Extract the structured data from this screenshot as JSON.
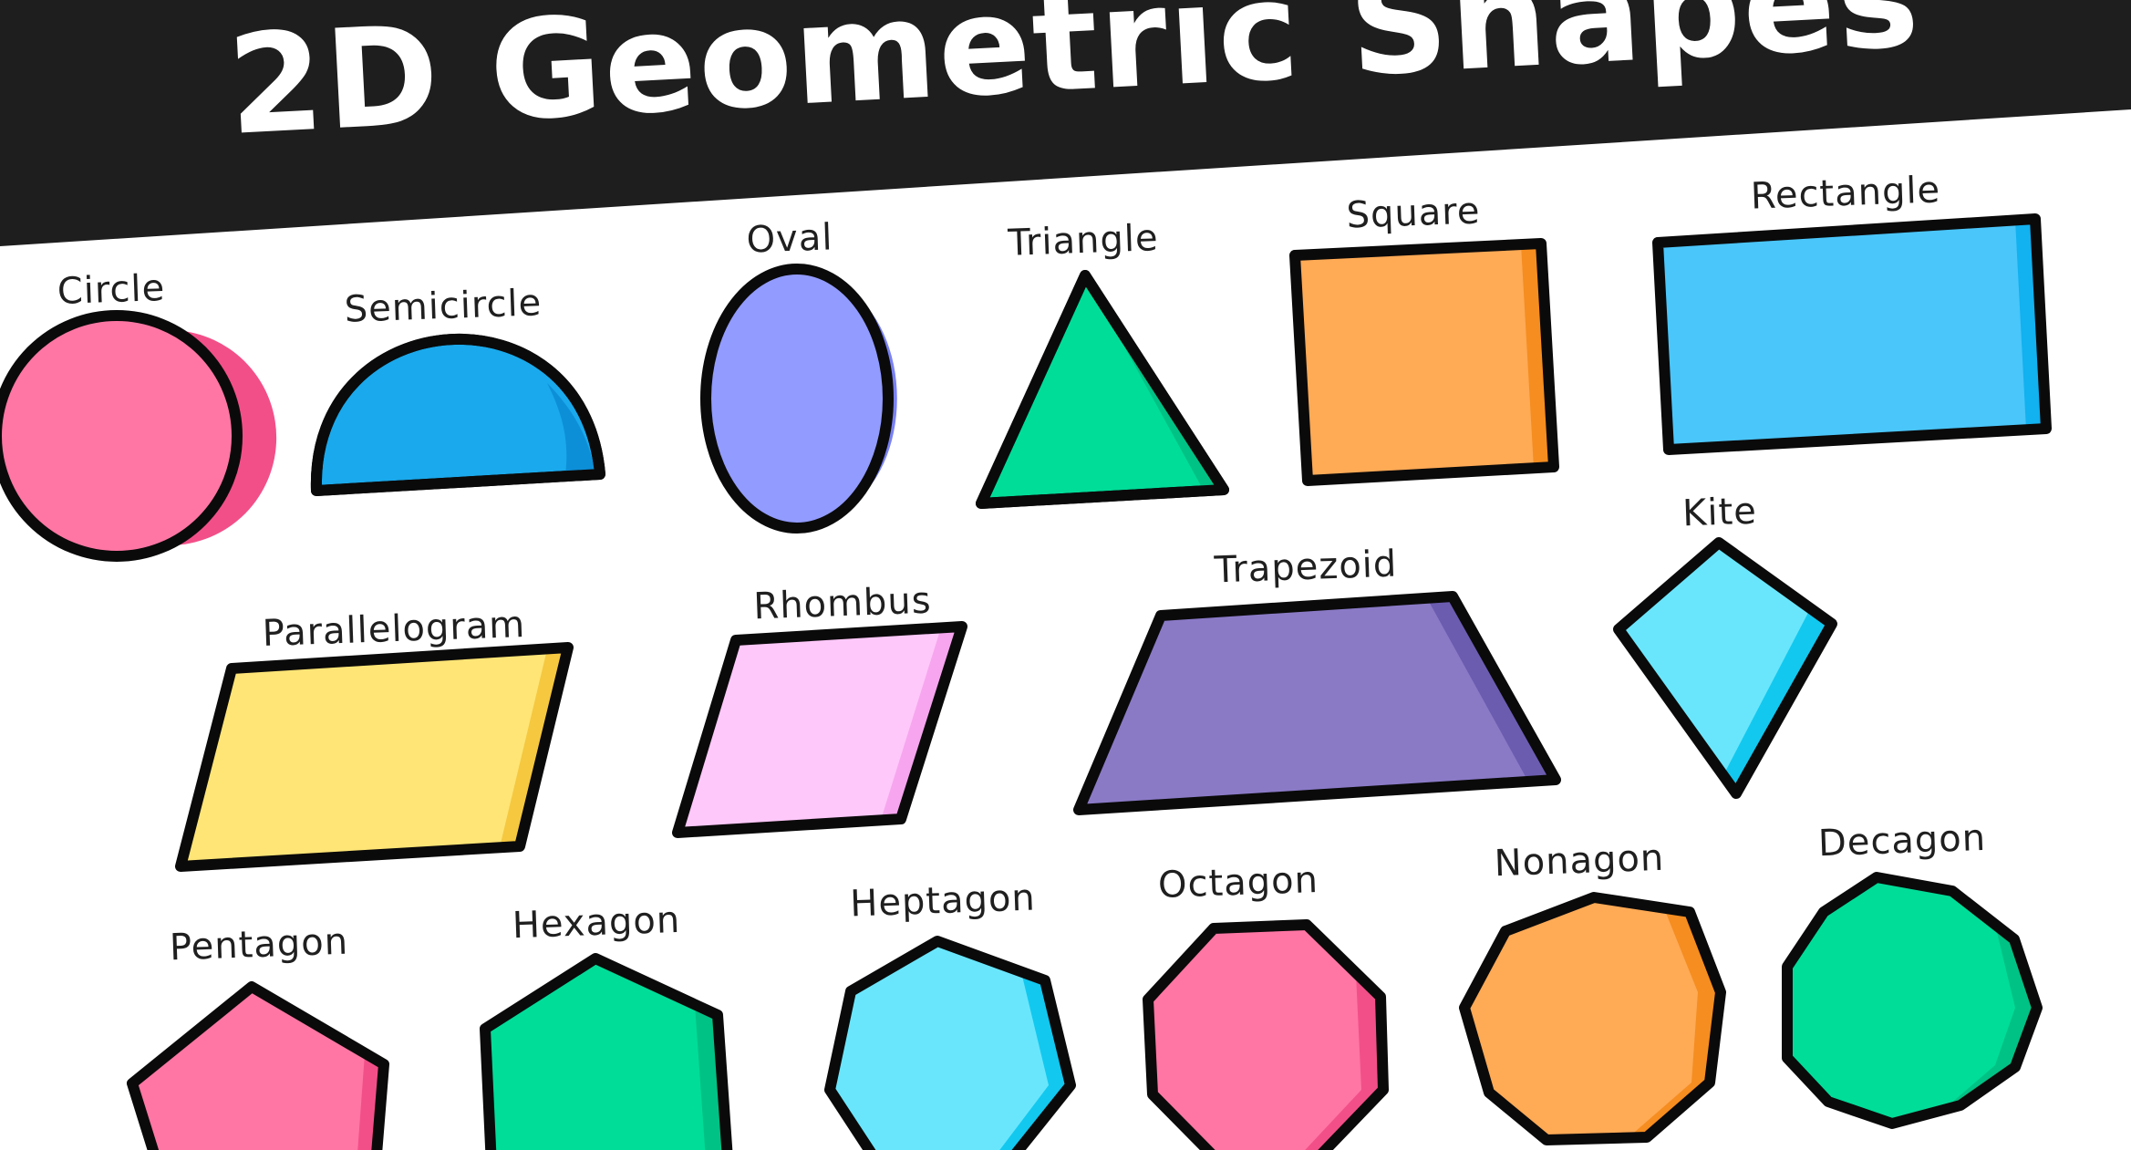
{
  "title": "2D Geometric Shapes",
  "colors": {
    "banner": "#1e1e1e",
    "outline": "#0a0a0a",
    "pink": "#ff76a4",
    "blue": "#1aa9ec",
    "periwinkle": "#929bff",
    "green": "#00dd99",
    "orange": "#ffaa55",
    "sky": "#4ac6fa",
    "yellow": "#ffe576",
    "lilac": "#ffc8fa",
    "purple": "#8a7ac6",
    "cyan": "#6ae6fc"
  },
  "shapes": [
    {
      "id": "circle",
      "label": "Circle",
      "fill": "pink"
    },
    {
      "id": "semicircle",
      "label": "Semicircle",
      "fill": "blue"
    },
    {
      "id": "oval",
      "label": "Oval",
      "fill": "periwinkle"
    },
    {
      "id": "triangle",
      "label": "Triangle",
      "fill": "green"
    },
    {
      "id": "square",
      "label": "Square",
      "fill": "orange"
    },
    {
      "id": "rectangle",
      "label": "Rectangle",
      "fill": "sky"
    },
    {
      "id": "parallelogram",
      "label": "Parallelogram",
      "fill": "yellow"
    },
    {
      "id": "rhombus",
      "label": "Rhombus",
      "fill": "lilac"
    },
    {
      "id": "trapezoid",
      "label": "Trapezoid",
      "fill": "purple"
    },
    {
      "id": "kite",
      "label": "Kite",
      "fill": "cyan"
    },
    {
      "id": "pentagon",
      "label": "Pentagon",
      "fill": "pink"
    },
    {
      "id": "hexagon",
      "label": "Hexagon",
      "fill": "green"
    },
    {
      "id": "heptagon",
      "label": "Heptagon",
      "fill": "cyan"
    },
    {
      "id": "octagon",
      "label": "Octagon",
      "fill": "pink"
    },
    {
      "id": "nonagon",
      "label": "Nonagon",
      "fill": "orange"
    },
    {
      "id": "decagon",
      "label": "Decagon",
      "fill": "green"
    }
  ]
}
